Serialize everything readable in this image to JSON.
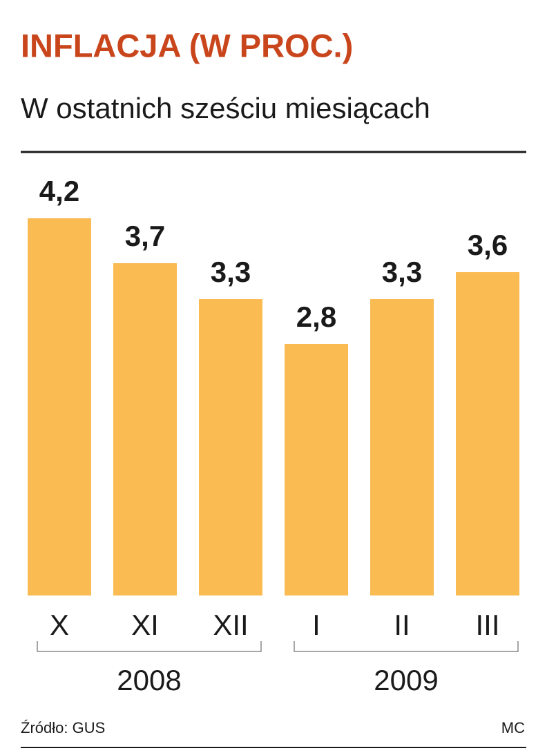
{
  "chart_data": {
    "type": "bar",
    "title": "INFLACJA (W PROC.)",
    "subtitle": "W ostatnich sześciu miesiącach",
    "categories": [
      "X",
      "XI",
      "XII",
      "I",
      "II",
      "III"
    ],
    "values": [
      4.2,
      3.7,
      3.3,
      2.8,
      3.3,
      3.6
    ],
    "value_labels": [
      "4,2",
      "3,7",
      "3,3",
      "2,8",
      "3,3",
      "3,6"
    ],
    "color": "#f9bb52",
    "groups": [
      "2008",
      "2009"
    ],
    "source": "Źródło: GUS",
    "credit": "MC"
  }
}
